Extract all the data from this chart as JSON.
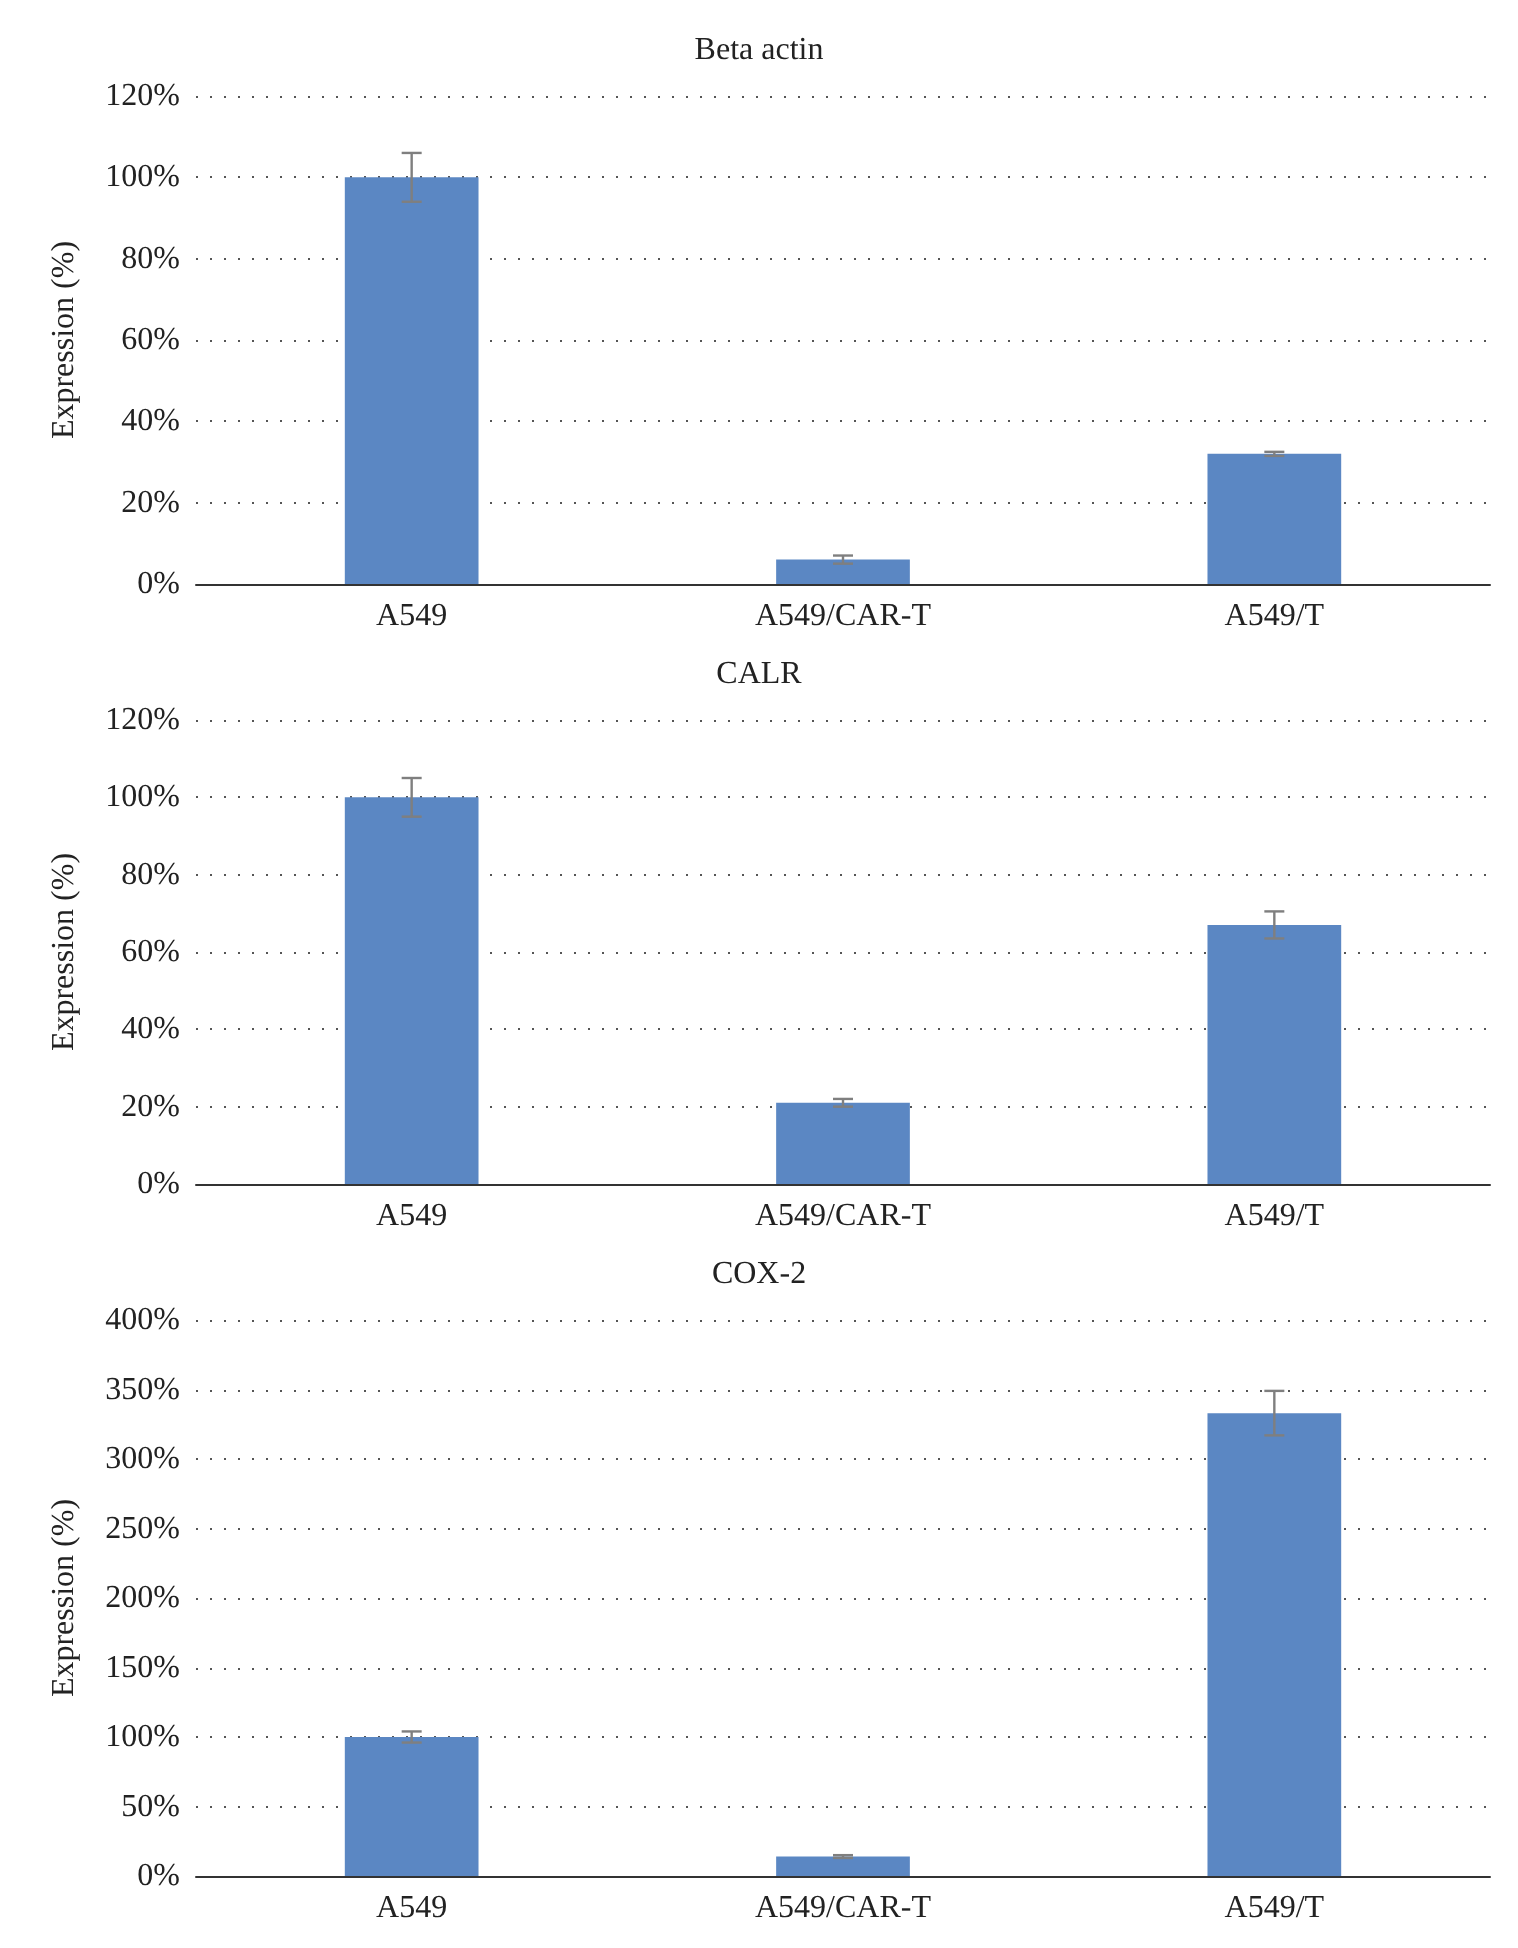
{
  "chart_data": [
    {
      "type": "bar",
      "title": "Beta actin",
      "ylabel": "Expression (%)",
      "categories": [
        "A549",
        "A549/CAR-T",
        "A549/T"
      ],
      "values": [
        100,
        6,
        32
      ],
      "errors": [
        6,
        1,
        0.5
      ],
      "color": "#5b87c3",
      "ylim": [
        0,
        120
      ],
      "yticks": [
        {
          "value": 0,
          "label": "0%"
        },
        {
          "value": 20,
          "label": "20%"
        },
        {
          "value": 40,
          "label": "40%"
        },
        {
          "value": 60,
          "label": "60%"
        },
        {
          "value": 80,
          "label": "80%"
        },
        {
          "value": 100,
          "label": "100%"
        },
        {
          "value": 120,
          "label": "120%"
        }
      ],
      "grid": "y"
    },
    {
      "type": "bar",
      "title": "CALR",
      "ylabel": "Expression (%)",
      "categories": [
        "A549",
        "A549/CAR-T",
        "A549/T"
      ],
      "values": [
        100,
        21,
        67
      ],
      "errors": [
        5,
        1,
        3.5
      ],
      "color": "#5b87c3",
      "ylim": [
        0,
        120
      ],
      "yticks": [
        {
          "value": 0,
          "label": "0%"
        },
        {
          "value": 20,
          "label": "20%"
        },
        {
          "value": 40,
          "label": "40%"
        },
        {
          "value": 60,
          "label": "60%"
        },
        {
          "value": 80,
          "label": "80%"
        },
        {
          "value": 100,
          "label": "100%"
        },
        {
          "value": 120,
          "label": "120%"
        }
      ],
      "grid": "y"
    },
    {
      "type": "bar",
      "title": "COX-2",
      "ylabel": "Expression (%)",
      "categories": [
        "A549",
        "A549/CAR-T",
        "A549/T"
      ],
      "values": [
        100,
        14,
        333
      ],
      "errors": [
        4,
        1,
        16
      ],
      "color": "#5b87c3",
      "ylim": [
        0,
        400
      ],
      "yticks": [
        {
          "value": 0,
          "label": "0%"
        },
        {
          "value": 50,
          "label": "50%"
        },
        {
          "value": 100,
          "label": "100%"
        },
        {
          "value": 150,
          "label": "150%"
        },
        {
          "value": 200,
          "label": "200%"
        },
        {
          "value": 250,
          "label": "250%"
        },
        {
          "value": 300,
          "label": "300%"
        },
        {
          "value": 350,
          "label": "350%"
        },
        {
          "value": 400,
          "label": "400%"
        }
      ],
      "grid": "y"
    }
  ]
}
